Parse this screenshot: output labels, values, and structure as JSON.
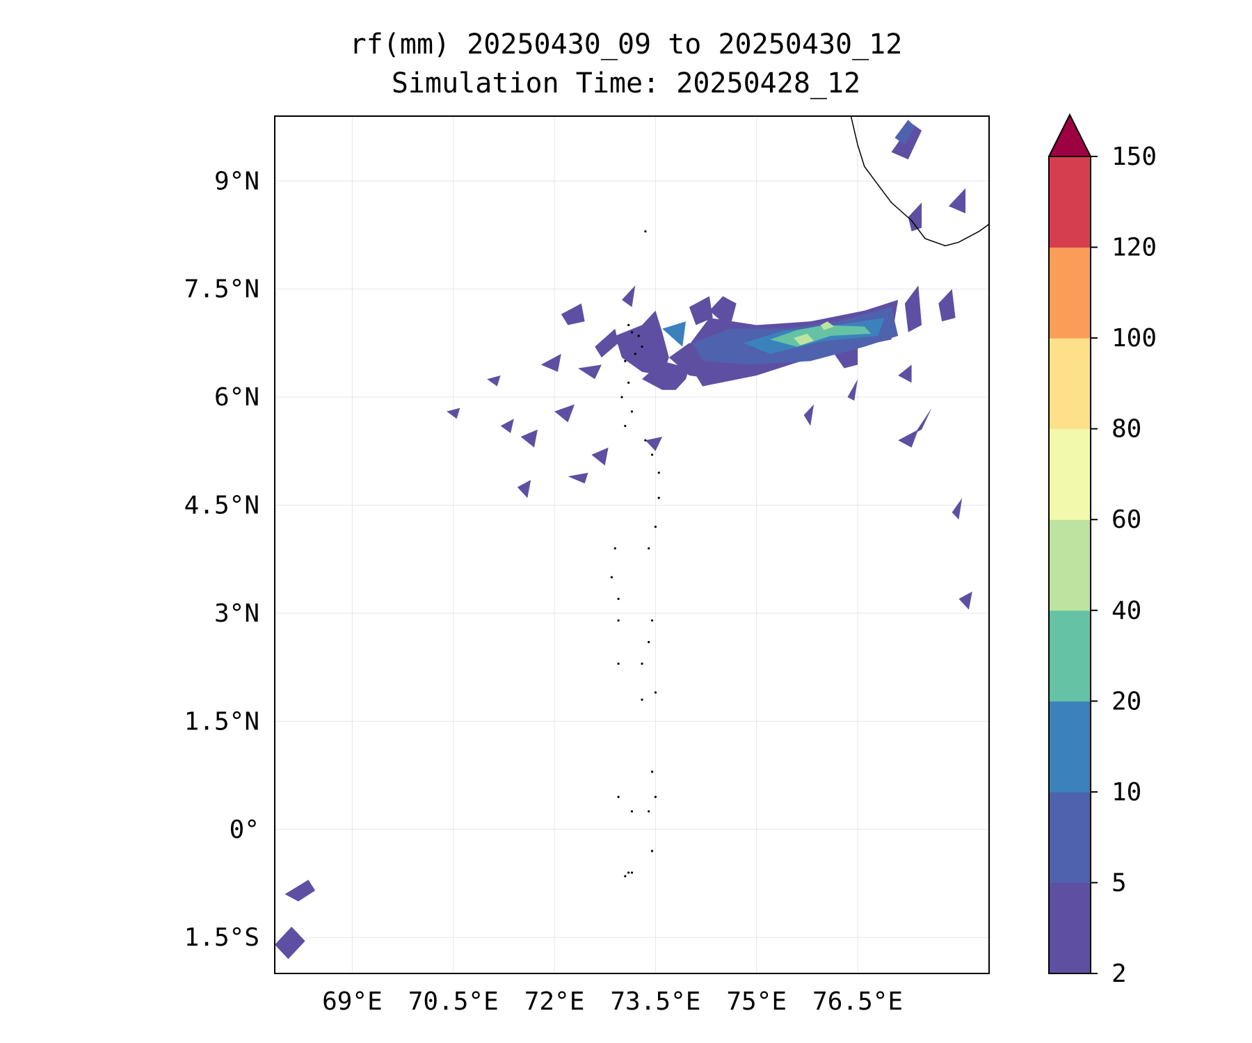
{
  "title_line1": "rf(mm) 20250430_09 to 20250430_12",
  "title_line2": "Simulation Time: 20250428_12",
  "chart_data": {
    "type": "heatmap",
    "map_projection": "PlateCarree",
    "xlim": [
      67.85,
      78.45
    ],
    "ylim": [
      -2.0,
      9.9
    ],
    "x_ticks": [
      69.0,
      70.5,
      72.0,
      73.5,
      75.0,
      76.5
    ],
    "x_tick_labels": [
      "69°E",
      "70.5°E",
      "72°E",
      "73.5°E",
      "75°E",
      "76.5°E"
    ],
    "y_ticks": [
      9.0,
      7.5,
      6.0,
      4.5,
      3.0,
      1.5,
      0.0,
      -1.5
    ],
    "y_tick_labels": [
      "9°N",
      "7.5°N",
      "6°N",
      "4.5°N",
      "3°N",
      "1.5°N",
      "0°",
      "1.5°S"
    ],
    "grid": true,
    "colorbar": {
      "levels": [
        2,
        5,
        10,
        20,
        40,
        60,
        80,
        100,
        120,
        150
      ],
      "tick_labels": [
        "2",
        "5",
        "10",
        "20",
        "40",
        "60",
        "80",
        "100",
        "120",
        "150"
      ],
      "colors": [
        "#5e4fa2",
        "#4f62ad",
        "#3b82bd",
        "#66c2a5",
        "#bce4a0",
        "#f3f9ac",
        "#fee08b",
        "#fb9c59",
        "#d53e4f"
      ],
      "extend_color": "#9e0142",
      "extend": "max",
      "placement": "right"
    },
    "rain_regions": [
      {
        "lon": [
          73.9,
          74.3,
          75.0,
          75.8,
          76.6,
          77.1,
          77.0,
          76.0,
          75.0,
          74.2,
          73.9
        ],
        "lat": [
          6.6,
          7.1,
          7.0,
          7.05,
          7.2,
          7.35,
          6.8,
          6.6,
          6.3,
          6.15,
          6.6
        ],
        "level": 0
      },
      {
        "lon": [
          74.05,
          74.6,
          75.4,
          76.2,
          77.0,
          77.1,
          76.6,
          75.8,
          74.9,
          74.2,
          74.05
        ],
        "lat": [
          6.75,
          6.95,
          6.95,
          7.05,
          7.25,
          6.85,
          6.7,
          6.5,
          6.45,
          6.5,
          6.75
        ],
        "level": 1
      },
      {
        "lon": [
          74.8,
          75.4,
          76.2,
          76.9,
          76.8,
          76.0,
          75.2,
          74.8
        ],
        "lat": [
          6.75,
          6.92,
          7.0,
          7.1,
          6.85,
          6.78,
          6.6,
          6.75
        ],
        "level": 2
      },
      {
        "lon": [
          75.2,
          75.6,
          76.0,
          76.6,
          76.7,
          76.1,
          75.6,
          75.2
        ],
        "lat": [
          6.8,
          6.93,
          7.0,
          6.98,
          6.88,
          6.85,
          6.7,
          6.8
        ],
        "level": 3
      },
      {
        "lon": [
          75.55,
          75.75,
          75.85,
          75.65,
          75.55
        ],
        "lat": [
          6.82,
          6.88,
          6.78,
          6.72,
          6.82
        ],
        "level": 4
      },
      {
        "lon": [
          75.95,
          76.05,
          76.15,
          76.0,
          75.95
        ],
        "lat": [
          7.0,
          7.05,
          6.98,
          6.93,
          7.0
        ],
        "level": 4
      },
      {
        "lon": [
          72.9,
          73.3,
          73.5,
          73.6,
          73.7,
          73.6,
          73.3,
          73.0,
          72.9
        ],
        "lat": [
          6.85,
          7.0,
          7.2,
          6.9,
          6.55,
          6.3,
          6.35,
          6.55,
          6.85
        ],
        "level": 0
      },
      {
        "lon": [
          73.3,
          73.6,
          73.8,
          73.95,
          74.0,
          73.6,
          73.3
        ],
        "lat": [
          6.25,
          6.1,
          6.1,
          6.25,
          6.4,
          6.5,
          6.25
        ],
        "level": 0
      },
      {
        "lon": [
          73.7,
          74.0,
          74.5,
          74.6,
          74.4,
          74.0,
          73.7
        ],
        "lat": [
          6.55,
          6.75,
          6.6,
          6.35,
          6.25,
          6.3,
          6.55
        ],
        "level": 0
      },
      {
        "lon": [
          74.3,
          74.5,
          74.7,
          74.6,
          74.3
        ],
        "lat": [
          7.2,
          7.4,
          7.3,
          6.95,
          7.2
        ],
        "level": 0
      },
      {
        "lon": [
          73.0,
          73.2,
          73.15,
          73.0
        ],
        "lat": [
          7.35,
          7.55,
          7.25,
          7.35
        ],
        "level": 0
      },
      {
        "lon": [
          72.1,
          72.4,
          72.45,
          72.2,
          72.1
        ],
        "lat": [
          7.15,
          7.3,
          7.05,
          7.0,
          7.15
        ],
        "level": 0
      },
      {
        "lon": [
          72.6,
          72.9,
          72.95,
          72.7,
          72.6
        ],
        "lat": [
          6.7,
          6.95,
          6.75,
          6.55,
          6.7
        ],
        "level": 0
      },
      {
        "lon": [
          71.8,
          72.1,
          72.05,
          71.8
        ],
        "lat": [
          6.45,
          6.6,
          6.35,
          6.45
        ],
        "level": 0
      },
      {
        "lon": [
          72.35,
          72.7,
          72.6,
          72.35
        ],
        "lat": [
          6.4,
          6.45,
          6.25,
          6.4
        ],
        "level": 0
      },
      {
        "lon": [
          74.0,
          74.3,
          74.35,
          74.1,
          74.0
        ],
        "lat": [
          7.25,
          7.4,
          7.1,
          7.0,
          7.25
        ],
        "level": 0
      },
      {
        "lon": [
          76.15,
          76.5,
          76.5,
          76.3,
          76.15
        ],
        "lat": [
          6.6,
          6.7,
          6.45,
          6.4,
          6.6
        ],
        "level": 0
      },
      {
        "lon": [
          77.2,
          77.4,
          77.45,
          77.25,
          77.2
        ],
        "lat": [
          7.3,
          7.55,
          7.0,
          6.9,
          7.3
        ],
        "level": 0
      },
      {
        "lon": [
          77.7,
          77.9,
          77.95,
          77.75,
          77.7
        ],
        "lat": [
          7.3,
          7.5,
          7.1,
          7.05,
          7.3
        ],
        "level": 0
      },
      {
        "lon": [
          77.1,
          77.3,
          77.3,
          77.1
        ],
        "lat": [
          6.3,
          6.45,
          6.2,
          6.3
        ],
        "level": 0
      },
      {
        "lon": [
          77.35,
          77.6,
          77.45,
          77.35
        ],
        "lat": [
          5.5,
          5.85,
          5.55,
          5.5
        ],
        "level": 0
      },
      {
        "lon": [
          76.35,
          76.5,
          76.45,
          76.35
        ],
        "lat": [
          6.0,
          6.25,
          5.95,
          6.0
        ],
        "level": 0
      },
      {
        "lon": [
          75.7,
          75.85,
          75.8,
          75.7
        ],
        "lat": [
          5.75,
          5.9,
          5.6,
          5.75
        ],
        "level": 0
      },
      {
        "lon": [
          77.1,
          77.4,
          77.3,
          77.1
        ],
        "lat": [
          5.4,
          5.55,
          5.3,
          5.4
        ],
        "level": 0
      },
      {
        "lon": [
          71.5,
          71.75,
          71.7,
          71.5
        ],
        "lat": [
          5.45,
          5.55,
          5.3,
          5.45
        ],
        "level": 0
      },
      {
        "lon": [
          71.2,
          71.4,
          71.35,
          71.2
        ],
        "lat": [
          5.6,
          5.7,
          5.5,
          5.6
        ],
        "level": 0
      },
      {
        "lon": [
          72.0,
          72.3,
          72.2,
          72.0
        ],
        "lat": [
          5.8,
          5.9,
          5.65,
          5.8
        ],
        "level": 0
      },
      {
        "lon": [
          72.55,
          72.8,
          72.75,
          72.55
        ],
        "lat": [
          5.2,
          5.3,
          5.05,
          5.2
        ],
        "level": 0
      },
      {
        "lon": [
          72.2,
          72.5,
          72.45,
          72.2
        ],
        "lat": [
          4.9,
          4.95,
          4.8,
          4.9
        ],
        "level": 0
      },
      {
        "lon": [
          73.35,
          73.6,
          73.5,
          73.35
        ],
        "lat": [
          5.4,
          5.45,
          5.25,
          5.4
        ],
        "level": 0
      },
      {
        "lon": [
          71.45,
          71.65,
          71.6,
          71.45
        ],
        "lat": [
          4.75,
          4.85,
          4.6,
          4.75
        ],
        "level": 0
      },
      {
        "lon": [
          70.4,
          70.6,
          70.55,
          70.4
        ],
        "lat": [
          5.8,
          5.85,
          5.7,
          5.8
        ],
        "level": 0
      },
      {
        "lon": [
          71.0,
          71.2,
          71.15,
          71.0
        ],
        "lat": [
          6.25,
          6.3,
          6.15,
          6.25
        ],
        "level": 0
      },
      {
        "lon": [
          68.0,
          68.35,
          68.45,
          68.2,
          68.0
        ],
        "lat": [
          -0.9,
          -0.7,
          -0.85,
          -1.0,
          -0.9
        ],
        "level": 0
      },
      {
        "lon": [
          67.85,
          68.1,
          68.3,
          68.05,
          67.85
        ],
        "lat": [
          -1.6,
          -1.35,
          -1.55,
          -1.8,
          -1.6
        ],
        "level": 0
      },
      {
        "lon": [
          78.0,
          78.2,
          78.15,
          78.0
        ],
        "lat": [
          3.2,
          3.3,
          3.05,
          3.2
        ],
        "level": 0
      },
      {
        "lon": [
          77.9,
          78.05,
          78.0,
          77.9
        ],
        "lat": [
          4.4,
          4.6,
          4.3,
          4.4
        ],
        "level": 0
      },
      {
        "lon": [
          77.0,
          77.3,
          77.45,
          77.25,
          77.0
        ],
        "lat": [
          9.4,
          9.8,
          9.7,
          9.3,
          9.4
        ],
        "level": 0
      },
      {
        "lon": [
          77.05,
          77.25,
          77.35,
          77.2,
          77.05
        ],
        "lat": [
          9.6,
          9.85,
          9.75,
          9.5,
          9.6
        ],
        "level": 1
      },
      {
        "lon": [
          77.25,
          77.45,
          77.45,
          77.3,
          77.25
        ],
        "lat": [
          8.5,
          8.7,
          8.35,
          8.3,
          8.5
        ],
        "level": 0
      },
      {
        "lon": [
          77.85,
          78.1,
          78.1,
          77.85
        ],
        "lat": [
          8.65,
          8.9,
          8.55,
          8.65
        ],
        "level": 0
      },
      {
        "lon": [
          73.6,
          73.95,
          73.9,
          73.6
        ],
        "lat": [
          6.95,
          7.05,
          6.7,
          6.95
        ],
        "level": 2
      }
    ],
    "coastline": {
      "lon": [
        76.4,
        76.5,
        76.6,
        76.8,
        77.0,
        77.3,
        77.5,
        77.8,
        78.0,
        78.3,
        78.45
      ],
      "lat": [
        9.9,
        9.5,
        9.2,
        8.95,
        8.7,
        8.45,
        8.2,
        8.1,
        8.15,
        8.3,
        8.4
      ]
    },
    "islands": [
      {
        "lon": 73.35,
        "lat": 8.3
      },
      {
        "lon": 73.1,
        "lat": 7.0
      },
      {
        "lon": 73.15,
        "lat": 6.9
      },
      {
        "lon": 73.25,
        "lat": 6.85
      },
      {
        "lon": 73.3,
        "lat": 6.7
      },
      {
        "lon": 73.2,
        "lat": 6.6
      },
      {
        "lon": 73.05,
        "lat": 6.5
      },
      {
        "lon": 73.1,
        "lat": 6.2
      },
      {
        "lon": 73.0,
        "lat": 6.0
      },
      {
        "lon": 73.15,
        "lat": 5.8
      },
      {
        "lon": 73.05,
        "lat": 5.6
      },
      {
        "lon": 73.35,
        "lat": 5.4
      },
      {
        "lon": 73.45,
        "lat": 5.2
      },
      {
        "lon": 73.55,
        "lat": 4.95
      },
      {
        "lon": 73.55,
        "lat": 4.6
      },
      {
        "lon": 73.5,
        "lat": 4.2
      },
      {
        "lon": 73.4,
        "lat": 3.9
      },
      {
        "lon": 72.9,
        "lat": 3.9
      },
      {
        "lon": 72.85,
        "lat": 3.5
      },
      {
        "lon": 72.95,
        "lat": 3.2
      },
      {
        "lon": 72.95,
        "lat": 2.9
      },
      {
        "lon": 73.45,
        "lat": 2.9
      },
      {
        "lon": 73.4,
        "lat": 2.6
      },
      {
        "lon": 73.3,
        "lat": 2.3
      },
      {
        "lon": 72.95,
        "lat": 2.3
      },
      {
        "lon": 73.5,
        "lat": 1.9
      },
      {
        "lon": 73.3,
        "lat": 1.8
      },
      {
        "lon": 73.45,
        "lat": 0.8
      },
      {
        "lon": 73.5,
        "lat": 0.45
      },
      {
        "lon": 73.4,
        "lat": 0.25
      },
      {
        "lon": 73.15,
        "lat": 0.25
      },
      {
        "lon": 72.95,
        "lat": 0.45
      },
      {
        "lon": 73.45,
        "lat": -0.3
      },
      {
        "lon": 73.15,
        "lat": -0.6
      },
      {
        "lon": 73.1,
        "lat": -0.6
      },
      {
        "lon": 73.05,
        "lat": -0.65
      }
    ]
  }
}
